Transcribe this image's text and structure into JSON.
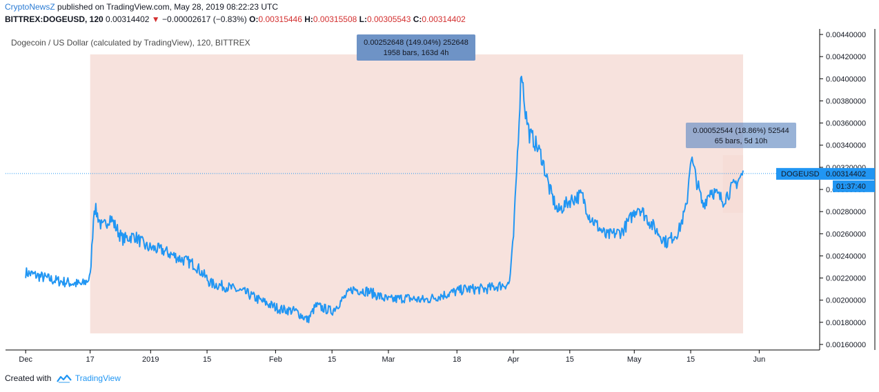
{
  "header": {
    "brand": "CryptoNewsZ",
    "published": "published on TradingView.com, May 28, 2019 08:22:23 UTC",
    "symbol": "BITTREX:DOGEUSD, 120",
    "last": "0.00314402",
    "change_arrow": "▼",
    "change": "−0.00002617 (−0.83%)",
    "o_label": "O:",
    "o_value": "0.00315446",
    "h_label": "H:",
    "h_value": "0.00315508",
    "l_label": "L:",
    "l_value": "0.00305543",
    "c_label": "C:",
    "c_value": "0.00314402"
  },
  "footer": {
    "created": "Created with",
    "brand": "TradingView",
    "icon": "tradingview-logo-icon"
  },
  "colors": {
    "line": "#2196f3",
    "range_fill": "#f6ddd7",
    "label_bg": "#6e93c6",
    "price_tag": "#2196f3",
    "text": "#131722"
  },
  "chart_data": {
    "type": "line",
    "title": "Dogecoin / US Dollar (calculated by TradingView), 120, BITTREX",
    "xlabel": "",
    "ylabel": "",
    "ylim": [
      0.00155,
      0.00445
    ],
    "x_ticks": [
      "Dec",
      "17",
      "2019",
      "15",
      "Feb",
      "15",
      "Mar",
      "18",
      "Apr",
      "15",
      "May",
      "15",
      "Jun"
    ],
    "y_ticks": [
      "0.00440000",
      "0.00420000",
      "0.00400000",
      "0.00380000",
      "0.00360000",
      "0.00340000",
      "0.00320000",
      "0.00300000",
      "0.00280000",
      "0.00260000",
      "0.00240000",
      "0.00220000",
      "0.00200000",
      "0.00180000",
      "0.00160000"
    ],
    "series": [
      {
        "name": "DOGEUSD",
        "x": [
          "2018-12-01",
          "2018-12-08",
          "2018-12-15",
          "2018-12-17",
          "2018-12-18",
          "2018-12-20",
          "2018-12-22",
          "2018-12-25",
          "2018-12-28",
          "2018-12-31",
          "2019-01-04",
          "2019-01-08",
          "2019-01-12",
          "2019-01-16",
          "2019-01-20",
          "2019-01-25",
          "2019-01-28",
          "2019-02-02",
          "2019-02-06",
          "2019-02-09",
          "2019-02-11",
          "2019-02-15",
          "2019-02-20",
          "2019-02-24",
          "2019-03-01",
          "2019-03-05",
          "2019-03-10",
          "2019-03-15",
          "2019-03-20",
          "2019-03-25",
          "2019-03-31",
          "2019-04-01",
          "2019-04-02",
          "2019-04-03",
          "2019-04-04",
          "2019-04-05",
          "2019-04-06",
          "2019-04-08",
          "2019-04-10",
          "2019-04-12",
          "2019-04-15",
          "2019-04-18",
          "2019-04-20",
          "2019-04-24",
          "2019-04-28",
          "2019-05-02",
          "2019-05-06",
          "2019-05-09",
          "2019-05-12",
          "2019-05-14",
          "2019-05-15",
          "2019-05-16",
          "2019-05-18",
          "2019-05-20",
          "2019-05-23",
          "2019-05-26",
          "2019-05-28"
        ],
        "values": [
          0.00225,
          0.00218,
          0.00214,
          0.0022,
          0.00285,
          0.00265,
          0.00275,
          0.00255,
          0.00258,
          0.00248,
          0.00245,
          0.00238,
          0.00232,
          0.00215,
          0.00212,
          0.00206,
          0.002,
          0.00192,
          0.0019,
          0.00182,
          0.00195,
          0.0019,
          0.0021,
          0.00208,
          0.002,
          0.00202,
          0.002,
          0.00205,
          0.0021,
          0.0021,
          0.00215,
          0.00255,
          0.0033,
          0.0041,
          0.0037,
          0.0035,
          0.00345,
          0.0033,
          0.003,
          0.0028,
          0.0029,
          0.00295,
          0.00275,
          0.00258,
          0.00262,
          0.00285,
          0.00265,
          0.00252,
          0.00262,
          0.00285,
          0.0033,
          0.00315,
          0.00285,
          0.003,
          0.0029,
          0.00305,
          0.00314
        ]
      }
    ],
    "current_price": {
      "label": "DOGEUSD",
      "value": 0.00314402,
      "text": "0.00314402",
      "countdown": "01:37:40"
    },
    "ranges": [
      {
        "from": "2018-12-17",
        "to": "2019-05-28",
        "low": 0.0017,
        "high": 0.00422,
        "line1": "0.00252648 (149.04%) 252648",
        "line2": "1958 bars, 163d 4h"
      },
      {
        "from": "2019-05-23",
        "to": "2019-05-28",
        "low": 0.00279,
        "high": 0.00331,
        "line1": "0.00052544 (18.86%) 52544",
        "line2": "65 bars, 5d 10h"
      }
    ]
  }
}
